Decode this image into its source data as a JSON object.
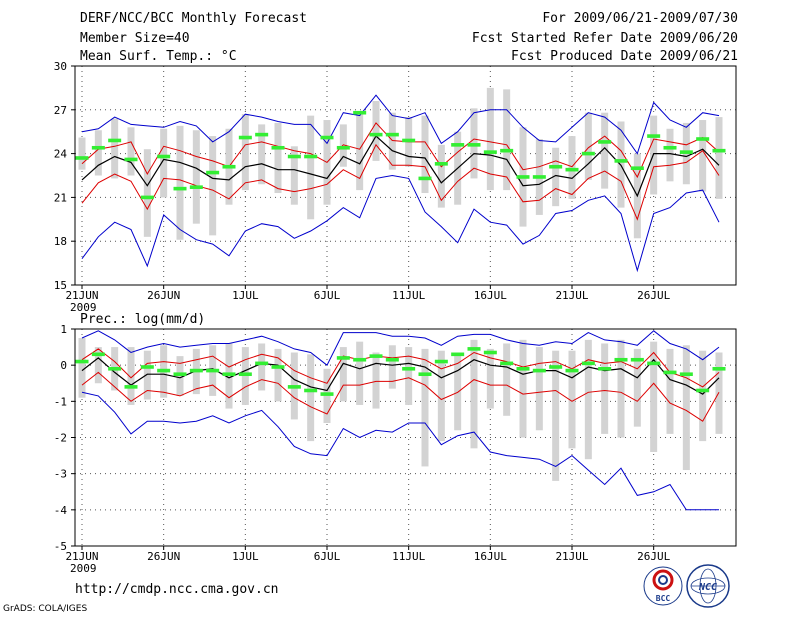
{
  "header": {
    "title": "DERF/NCC/BCC Monthly Forecast",
    "member_size": "Member Size=40",
    "variable_temp": "Mean Surf. Temp.: °C",
    "period": "For 2009/06/21-2009/07/30",
    "started": "Fcst Started Refer Date 2009/06/20",
    "produced": "Fcst Produced Date 2009/06/21"
  },
  "footer": {
    "url": "http://cmdp.ncc.cma.gov.cn",
    "grads": "GrADS: COLA/IGES",
    "logo_bcc": "BCC",
    "logo_ncc": "NCC"
  },
  "colors": {
    "max_min": "#0000cc",
    "spread": "#dd0000",
    "mean": "#000000",
    "bar": "#d3d3d3",
    "median": "#33ee33"
  },
  "chart_data": [
    {
      "type": "line",
      "title": "Mean Surf. Temp.: °C",
      "ylim": [
        15,
        30
      ],
      "yticks": [
        15,
        18,
        21,
        24,
        27,
        30
      ],
      "xtick_labels": [
        "21JUN",
        "26JUN",
        "1JUL",
        "6JUL",
        "11JUL",
        "16JUL",
        "21JUL",
        "26JUL"
      ],
      "xtick_index": [
        0,
        5,
        10,
        15,
        20,
        25,
        30,
        35
      ],
      "xsub_label": "2009",
      "grid": true,
      "series": [
        {
          "name": "max",
          "values": [
            25.5,
            25.7,
            26.5,
            26,
            25.9,
            25.8,
            26.2,
            25.9,
            24.8,
            25.5,
            26.7,
            26.5,
            26.2,
            26,
            26,
            24.7,
            26.8,
            26.6,
            28,
            26.6,
            26.4,
            26.8,
            24.7,
            25.5,
            26.8,
            27,
            27,
            25.8,
            24.9,
            24.8,
            25.8,
            26.8,
            26.5,
            25.6,
            24,
            27.5,
            26.3,
            25.8,
            26.8,
            26.6
          ]
        },
        {
          "name": "upper",
          "values": [
            23.3,
            24.3,
            24.5,
            24.8,
            22.6,
            24.5,
            24.2,
            23.8,
            23.5,
            23.1,
            24.6,
            24.8,
            24.5,
            24.2,
            24,
            23.4,
            24.6,
            24.3,
            26.1,
            24.9,
            24.8,
            24.8,
            23.1,
            24.1,
            25,
            24.8,
            24.6,
            22.9,
            23.1,
            23.5,
            23.1,
            24.4,
            25.2,
            24.2,
            22.4,
            25,
            24.8,
            24.6,
            25.1,
            24.1
          ]
        },
        {
          "name": "mean",
          "values": [
            22.2,
            23.2,
            23.8,
            23.4,
            21.8,
            23.6,
            23.4,
            23,
            22.3,
            22.2,
            23.1,
            23.3,
            22.9,
            22.9,
            22.6,
            22.3,
            23.8,
            23.3,
            25.2,
            24.2,
            23.8,
            23.7,
            22,
            23,
            24,
            23.9,
            23.6,
            21.8,
            21.9,
            22.5,
            22.3,
            23.3,
            24.4,
            23.2,
            21.1,
            24,
            24,
            23.8,
            24.3,
            23.2
          ]
        },
        {
          "name": "lower",
          "values": [
            20.6,
            22,
            22.6,
            22.1,
            20.2,
            22.3,
            22.2,
            21.8,
            21.5,
            20.9,
            22,
            22.2,
            21.6,
            21.4,
            21.6,
            21.9,
            22.9,
            22.3,
            24.6,
            23.2,
            23.2,
            23.1,
            20.8,
            22.1,
            23,
            22.6,
            22.4,
            20.7,
            20.8,
            21.6,
            21.2,
            22.3,
            22.8,
            22.1,
            19.5,
            23.1,
            23.2,
            23.4,
            24.2,
            22.5
          ]
        },
        {
          "name": "min",
          "values": [
            16.8,
            18.3,
            19.3,
            18.8,
            16.3,
            19.8,
            18.8,
            18.1,
            17.8,
            17,
            18.7,
            19.2,
            19,
            18.2,
            18.7,
            19.4,
            20.3,
            19.6,
            22.3,
            22.5,
            22.3,
            20,
            19,
            17.9,
            20.2,
            19.3,
            19.1,
            17.8,
            18.4,
            19.9,
            20.1,
            20.8,
            21.1,
            19.9,
            16,
            19.9,
            20.3,
            21.3,
            21.5,
            19.3
          ]
        }
      ],
      "bars": {
        "low": [
          22.9,
          22.5,
          22.3,
          22.5,
          18.3,
          21,
          18.1,
          19.2,
          18.4,
          20.5,
          21.5,
          21.9,
          21.3,
          20.5,
          19.5,
          20.5,
          23.1,
          21.5,
          23.5,
          22.9,
          23.1,
          21.3,
          20.3,
          20.5,
          22.3,
          21.5,
          21.5,
          19,
          19.8,
          20.4,
          20.9,
          22.2,
          21.6,
          20.3,
          18.2,
          21.2,
          22.1,
          21.9,
          21.4,
          20.9
        ],
        "high": [
          25.1,
          25.6,
          26.4,
          25.8,
          24.3,
          25.7,
          25.9,
          25.6,
          25.2,
          25.7,
          26.7,
          26,
          26.1,
          24.5,
          26.6,
          26.3,
          26,
          26.7,
          27.6,
          26.8,
          26.5,
          26.6,
          24.6,
          25.5,
          27.1,
          28.5,
          28.4,
          25.8,
          25,
          24.4,
          25.2,
          26.8,
          26.8,
          26.2,
          24,
          26.6,
          25.7,
          26.1,
          26.3,
          26.5
        ]
      },
      "median": [
        23.7,
        24.4,
        24.9,
        23.6,
        21,
        23.8,
        21.6,
        21.7,
        22.7,
        23.1,
        25.1,
        25.3,
        24.4,
        23.8,
        23.8,
        25.1,
        24.4,
        26.8,
        25.3,
        25.3,
        24.9,
        22.3,
        23.3,
        24.6,
        24.6,
        24.1,
        24.2,
        22.4,
        22.4,
        23.1,
        22.9,
        24,
        24.8,
        23.5,
        23,
        25.2,
        24.4,
        24.1,
        25,
        24.2
      ]
    },
    {
      "type": "line",
      "title": "Prec.: log(mm/d)",
      "ylim": [
        -5,
        1
      ],
      "yticks": [
        -5,
        -4,
        -3,
        -2,
        -1,
        0,
        1
      ],
      "xtick_labels": [
        "21JUN",
        "26JUN",
        "1JUL",
        "6JUL",
        "11JUL",
        "16JUL",
        "21JUL",
        "26JUL"
      ],
      "xtick_index": [
        0,
        5,
        10,
        15,
        20,
        25,
        30,
        35
      ],
      "xsub_label": "2009",
      "grid": true,
      "series": [
        {
          "name": "max",
          "values": [
            0.75,
            0.95,
            0.7,
            0.35,
            0.5,
            0.6,
            0.5,
            0.55,
            0.6,
            0.6,
            0.7,
            0.8,
            0.65,
            0.45,
            0.35,
            0,
            0.9,
            0.9,
            0.9,
            0.8,
            0.8,
            0.75,
            0.55,
            0.8,
            0.85,
            0.85,
            0.7,
            0.6,
            0.55,
            0.65,
            0.6,
            0.9,
            0.7,
            0.65,
            0.55,
            0.95,
            0.6,
            0.45,
            0.15,
            0.5
          ]
        },
        {
          "name": "upper",
          "values": [
            0.15,
            0.45,
            0.1,
            -0.35,
            0.05,
            0.1,
            0.05,
            0.15,
            0.25,
            -0.05,
            0.15,
            0.3,
            0.2,
            -0.15,
            -0.35,
            -0.5,
            0.25,
            0.15,
            0.25,
            0.2,
            0.25,
            0.15,
            -0.1,
            0.05,
            0.35,
            0.2,
            0.1,
            -0.05,
            0.05,
            0.1,
            -0.1,
            0.15,
            0.05,
            0.1,
            -0.1,
            0.35,
            -0.2,
            -0.35,
            -0.6,
            -0.2
          ]
        },
        {
          "name": "mean",
          "values": [
            -0.15,
            0.2,
            -0.2,
            -0.55,
            -0.25,
            -0.25,
            -0.35,
            -0.15,
            -0.1,
            -0.35,
            -0.15,
            0.05,
            0,
            -0.4,
            -0.6,
            -0.7,
            0.05,
            -0.1,
            0.05,
            0,
            0.05,
            -0.05,
            -0.35,
            -0.15,
            0.15,
            0,
            -0.05,
            -0.25,
            -0.15,
            -0.15,
            -0.35,
            -0.05,
            -0.15,
            -0.1,
            -0.35,
            0.15,
            -0.4,
            -0.55,
            -0.8,
            -0.35
          ]
        },
        {
          "name": "lower",
          "values": [
            -0.55,
            -0.2,
            -0.6,
            -1,
            -0.7,
            -0.75,
            -0.85,
            -0.65,
            -0.55,
            -0.9,
            -0.6,
            -0.4,
            -0.5,
            -0.9,
            -1.15,
            -1.35,
            -0.55,
            -0.55,
            -0.45,
            -0.45,
            -0.35,
            -0.55,
            -0.95,
            -0.75,
            -0.4,
            -0.55,
            -0.55,
            -0.8,
            -0.75,
            -0.7,
            -1,
            -0.75,
            -0.7,
            -0.75,
            -1,
            -0.5,
            -1.05,
            -1.25,
            -1.55,
            -0.75
          ]
        },
        {
          "name": "min",
          "values": [
            -0.75,
            -0.85,
            -1.3,
            -1.9,
            -1.55,
            -1.55,
            -1.6,
            -1.55,
            -1.4,
            -1.6,
            -1.4,
            -1.25,
            -1.7,
            -2.25,
            -2.45,
            -2.5,
            -1.75,
            -2,
            -1.8,
            -1.85,
            -1.6,
            -1.6,
            -2.2,
            -1.95,
            -1.85,
            -2.4,
            -2.5,
            -2.55,
            -2.6,
            -2.8,
            -2.5,
            -2.9,
            -3.3,
            -2.85,
            -3.6,
            -3.5,
            -3.3,
            -4,
            -4,
            -4
          ]
        }
      ],
      "bars": {
        "low": [
          -0.9,
          -0.5,
          -0.7,
          -1.1,
          -0.95,
          -0.9,
          -0.85,
          -0.8,
          -0.85,
          -1.2,
          -1.1,
          -0.7,
          -1,
          -1.5,
          -2.1,
          -1.6,
          -1,
          -1.1,
          -1.2,
          -0.65,
          -1.1,
          -2.8,
          -2.1,
          -1.8,
          -2.3,
          -1.2,
          -1.4,
          -2,
          -1.8,
          -3.2,
          -2.3,
          -2.6,
          -1.9,
          -2,
          -1.7,
          -2.4,
          -1.9,
          -2.9,
          -2.1,
          -1.9
        ],
        "high": [
          0.75,
          0.5,
          0.5,
          0.5,
          0.4,
          0.55,
          0.25,
          0.45,
          0.55,
          0.6,
          0.5,
          0.6,
          0.45,
          0.35,
          0.3,
          -0.1,
          0.5,
          0.65,
          0.35,
          0.55,
          0.5,
          0.45,
          0.4,
          0.35,
          0.7,
          0.45,
          0.6,
          0.7,
          0.5,
          0.4,
          0.4,
          0.7,
          0.6,
          0.7,
          0.45,
          0.65,
          0.45,
          0.55,
          0.4,
          0.35
        ]
      },
      "median": [
        0.1,
        0.3,
        -0.1,
        -0.6,
        -0.05,
        -0.15,
        -0.25,
        -0.15,
        -0.15,
        -0.25,
        -0.25,
        0.05,
        -0.05,
        -0.6,
        -0.7,
        -0.8,
        0.2,
        0.15,
        0.25,
        0.15,
        -0.1,
        -0.25,
        0.1,
        0.3,
        0.45,
        0.35,
        0.05,
        -0.1,
        -0.15,
        -0.05,
        -0.15,
        0.05,
        -0.1,
        0.15,
        0.15,
        0.05,
        -0.2,
        -0.25,
        -0.7,
        -0.1
      ]
    }
  ]
}
